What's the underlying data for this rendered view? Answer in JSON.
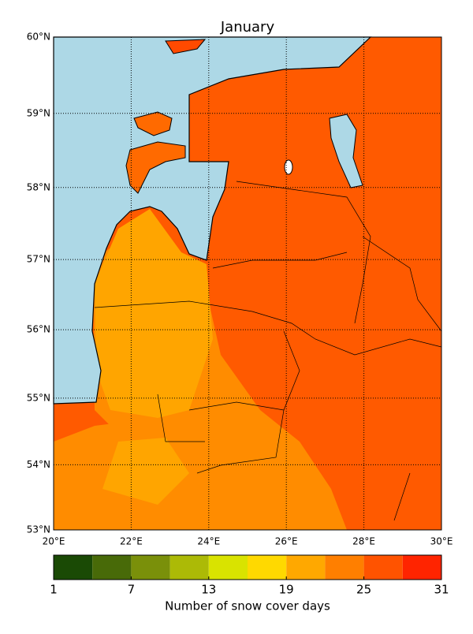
{
  "title": "January",
  "map": {
    "lon_ticks": [
      {
        "value": 20,
        "label": "20°E"
      },
      {
        "value": 22,
        "label": "22°E"
      },
      {
        "value": 24,
        "label": "24°E"
      },
      {
        "value": 26,
        "label": "26°E"
      },
      {
        "value": 28,
        "label": "28°E"
      },
      {
        "value": 30,
        "label": "30°E"
      }
    ],
    "lat_ticks": [
      {
        "value": 53,
        "label": "53°N"
      },
      {
        "value": 54,
        "label": "54°N"
      },
      {
        "value": 55,
        "label": "55°N"
      },
      {
        "value": 56,
        "label": "56°N"
      },
      {
        "value": 57,
        "label": "57°N"
      },
      {
        "value": 58,
        "label": "58°N"
      },
      {
        "value": 59,
        "label": "59°N"
      },
      {
        "value": 60,
        "label": "60°N"
      }
    ],
    "lon_range": [
      20,
      30
    ],
    "lat_range": [
      53,
      60
    ]
  },
  "colorbar": {
    "label": "Number of snow cover days",
    "levels": [
      1,
      4,
      7,
      10,
      13,
      16,
      19,
      22,
      25,
      28,
      31
    ],
    "colors": [
      "#1a4a05",
      "#486a08",
      "#7a900a",
      "#acba06",
      "#d9e300",
      "#ffd900",
      "#ffa800",
      "#ff7f00",
      "#ff5300",
      "#ff2400"
    ],
    "ticks": [
      1,
      7,
      13,
      19,
      25,
      31
    ]
  }
}
